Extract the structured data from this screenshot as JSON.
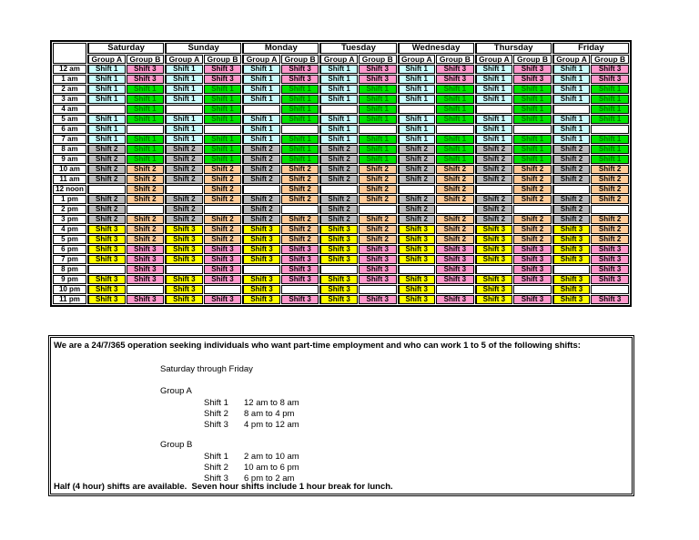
{
  "schedule_table": {
    "corner_label": "",
    "days": [
      "Saturday",
      "Sunday",
      "Monday",
      "Tuesday",
      "Wednesday",
      "Thursday",
      "Friday"
    ],
    "group_headers": [
      "Group A",
      "Group B"
    ],
    "rows": [
      {
        "time": "12 am",
        "a": {
          "label": "Shift 1",
          "style": "shift1_a"
        },
        "b": {
          "label": "Shift 3",
          "style": "shift3_b"
        }
      },
      {
        "time": "1 am",
        "a": {
          "label": "Shift 1",
          "style": "shift1_a"
        },
        "b": {
          "label": "Shift 3",
          "style": "shift3_b"
        }
      },
      {
        "time": "2 am",
        "a": {
          "label": "Shift 1",
          "style": "shift1_a"
        },
        "b": {
          "label": "Shift 1",
          "style": "shift1_b"
        }
      },
      {
        "time": "3 am",
        "a": {
          "label": "Shift 1",
          "style": "shift1_a"
        },
        "b": {
          "label": "Shift 1",
          "style": "shift1_b"
        }
      },
      {
        "time": "4 am",
        "a": {
          "label": "",
          "style": "empty"
        },
        "b": {
          "label": "Shift 1",
          "style": "shift1_b"
        }
      },
      {
        "time": "5 am",
        "a": {
          "label": "Shift 1",
          "style": "shift1_a"
        },
        "b": {
          "label": "Shift 1",
          "style": "shift1_b"
        }
      },
      {
        "time": "6 am",
        "a": {
          "label": "Shift 1",
          "style": "shift1_a"
        },
        "b": {
          "label": "",
          "style": "empty"
        }
      },
      {
        "time": "7 am",
        "a": {
          "label": "Shift 1",
          "style": "shift1_a"
        },
        "b": {
          "label": "Shift 1",
          "style": "shift1_b"
        }
      },
      {
        "time": "8 am",
        "a": {
          "label": "Shift 2",
          "style": "shift2_a"
        },
        "b": {
          "label": "Shift 1",
          "style": "shift1_b"
        }
      },
      {
        "time": "9 am",
        "a": {
          "label": "Shift 2",
          "style": "shift2_a"
        },
        "b": {
          "label": "Shift 1",
          "style": "shift1_b"
        }
      },
      {
        "time": "10 am",
        "a": {
          "label": "Shift 2",
          "style": "shift2_a"
        },
        "b": {
          "label": "Shift 2",
          "style": "shift2_b"
        }
      },
      {
        "time": "11 am",
        "a": {
          "label": "Shift 2",
          "style": "shift2_a"
        },
        "b": {
          "label": "Shift 2",
          "style": "shift2_b"
        }
      },
      {
        "time": "12 noon",
        "a": {
          "label": "",
          "style": "empty"
        },
        "b": {
          "label": "Shift 2",
          "style": "shift2_b"
        }
      },
      {
        "time": "1 pm",
        "a": {
          "label": "Shift 2",
          "style": "shift2_a"
        },
        "b": {
          "label": "Shift 2",
          "style": "shift2_b"
        }
      },
      {
        "time": "2 pm",
        "a": {
          "label": "Shift 2",
          "style": "shift2_a"
        },
        "b": {
          "label": "",
          "style": "empty"
        }
      },
      {
        "time": "3 pm",
        "a": {
          "label": "Shift 2",
          "style": "shift2_a"
        },
        "b": {
          "label": "Shift 2",
          "style": "shift2_b"
        }
      },
      {
        "time": "4 pm",
        "a": {
          "label": "Shift 3",
          "style": "shift3_a"
        },
        "b": {
          "label": "Shift 2",
          "style": "shift2_b"
        }
      },
      {
        "time": "5 pm",
        "a": {
          "label": "Shift 3",
          "style": "shift3_a"
        },
        "b": {
          "label": "Shift 2",
          "style": "shift2_b"
        }
      },
      {
        "time": "6 pm",
        "a": {
          "label": "Shift 3",
          "style": "shift3_a"
        },
        "b": {
          "label": "Shift 3",
          "style": "shift3_b"
        }
      },
      {
        "time": "7 pm",
        "a": {
          "label": "Shift 3",
          "style": "shift3_a"
        },
        "b": {
          "label": "Shift 3",
          "style": "shift3_b"
        }
      },
      {
        "time": "8 pm",
        "a": {
          "label": "",
          "style": "empty"
        },
        "b": {
          "label": "Shift 3",
          "style": "shift3_b"
        }
      },
      {
        "time": "9 pm",
        "a": {
          "label": "Shift 3",
          "style": "shift3_a"
        },
        "b": {
          "label": "Shift 3",
          "style": "shift3_b"
        }
      },
      {
        "time": "10 pm",
        "a": {
          "label": "Shift 3",
          "style": "shift3_a"
        },
        "b": {
          "label": "",
          "style": "empty"
        }
      },
      {
        "time": "11 pm",
        "a": {
          "label": "Shift 3",
          "style": "shift3_a"
        },
        "b": {
          "label": "Shift 3",
          "style": "shift3_b"
        }
      }
    ]
  },
  "cell_styles": {
    "shift1_a": {
      "bg": "#ccffff",
      "text": "#000000"
    },
    "shift1_b": {
      "bg": "#00e400",
      "text": "#007700"
    },
    "shift2_a": {
      "bg": "#bfbfbf",
      "text": "#000000"
    },
    "shift2_b": {
      "bg": "#ffcc99",
      "text": "#000000"
    },
    "shift3_a": {
      "bg": "#ffff00",
      "text": "#000000"
    },
    "shift3_b": {
      "bg": "#ff99cc",
      "text": "#000000"
    },
    "empty": {
      "bg": "#ffffff",
      "text": "#000000"
    }
  },
  "info_box": {
    "intro": "We are a 24/7/365 operation seeking individuals who want part-time employment and who can work 1 to 5 of the following shifts:",
    "range": "Saturday through Friday",
    "groups": [
      {
        "name": "Group A",
        "shifts": [
          {
            "label": "Shift 1",
            "time": "12 am to 8 am"
          },
          {
            "label": "Shift 2",
            "time": "8 am to 4 pm"
          },
          {
            "label": "Shift 3",
            "time": "4 pm to 12 am"
          }
        ]
      },
      {
        "name": "Group B",
        "shifts": [
          {
            "label": "Shift 1",
            "time": "2 am to 10 am"
          },
          {
            "label": "Shift 2",
            "time": "10 am to 6 pm"
          },
          {
            "label": "Shift 3",
            "time": "6 pm to 2 am"
          }
        ]
      }
    ],
    "footer": "Half (4 hour) shifts are available.  Seven hour shifts include 1 hour break for lunch."
  }
}
